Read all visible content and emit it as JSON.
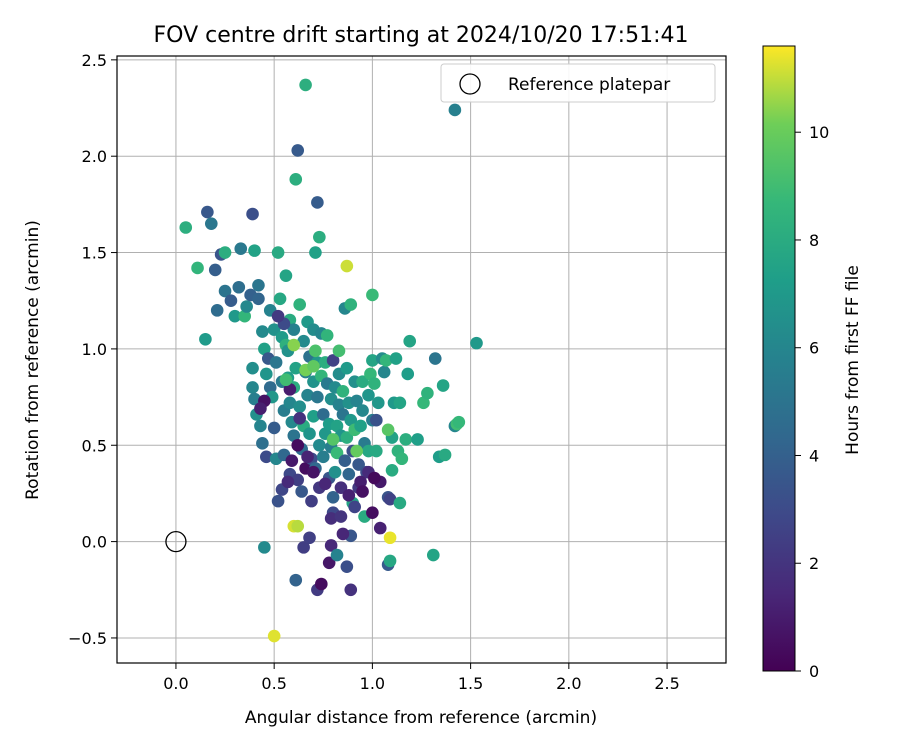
{
  "chart_data": {
    "type": "scatter",
    "title": "FOV centre drift starting at 2024/10/20 17:51:41",
    "xlabel": "Angular distance from reference (arcmin)",
    "ylabel": "Rotation from reference (arcmin)",
    "xlim": [
      -0.3,
      2.8
    ],
    "ylim": [
      -0.63,
      2.52
    ],
    "xticks": [
      0.0,
      0.5,
      1.0,
      1.5,
      2.0,
      2.5
    ],
    "xtick_labels": [
      "0.0",
      "0.5",
      "1.0",
      "1.5",
      "2.0",
      "2.5"
    ],
    "yticks": [
      -0.5,
      0.0,
      0.5,
      1.0,
      1.5,
      2.0,
      2.5
    ],
    "ytick_labels": [
      "−0.5",
      "0.0",
      "0.5",
      "1.0",
      "1.5",
      "2.0",
      "2.5"
    ],
    "grid": true,
    "legend": {
      "position": "top-right",
      "entries": [
        "Reference platepar"
      ]
    },
    "reference_point": {
      "x": 0.0,
      "y": 0.0,
      "label": "Reference platepar"
    },
    "colorbar": {
      "label": "Hours from first FF file",
      "colormap": "viridis",
      "range": [
        0,
        11.6
      ],
      "ticks": [
        0,
        2,
        4,
        6,
        8,
        10
      ],
      "tick_labels": [
        "0",
        "2",
        "4",
        "6",
        "8",
        "10"
      ]
    },
    "point_columns": [
      "x_arcmin",
      "y_arcmin",
      "hours"
    ],
    "points": [
      [
        0.05,
        1.63,
        8.2
      ],
      [
        0.11,
        1.42,
        8.5
      ],
      [
        0.15,
        1.05,
        7.1
      ],
      [
        0.16,
        1.71,
        3.6
      ],
      [
        0.18,
        1.65,
        5.2
      ],
      [
        0.2,
        1.41,
        3.9
      ],
      [
        0.21,
        1.2,
        4.6
      ],
      [
        0.23,
        1.49,
        3.4
      ],
      [
        0.25,
        1.3,
        5.0
      ],
      [
        0.25,
        1.5,
        8.1
      ],
      [
        0.28,
        1.25,
        3.8
      ],
      [
        0.3,
        1.17,
        7.0
      ],
      [
        0.32,
        1.32,
        4.7
      ],
      [
        0.33,
        1.52,
        5.3
      ],
      [
        0.35,
        1.17,
        8.6
      ],
      [
        0.36,
        1.22,
        6.1
      ],
      [
        0.38,
        1.28,
        4.0
      ],
      [
        0.39,
        1.7,
        3.2
      ],
      [
        0.4,
        1.51,
        7.5
      ],
      [
        0.39,
        0.9,
        6.4
      ],
      [
        0.39,
        0.8,
        6.0
      ],
      [
        0.4,
        0.74,
        5.6
      ],
      [
        0.41,
        0.66,
        6.5
      ],
      [
        0.42,
        1.33,
        5.1
      ],
      [
        0.42,
        1.26,
        4.2
      ],
      [
        0.43,
        0.6,
        5.9
      ],
      [
        0.44,
        0.51,
        4.8
      ],
      [
        0.44,
        1.09,
        6.2
      ],
      [
        0.45,
        1.0,
        7.4
      ],
      [
        0.46,
        0.87,
        6.8
      ],
      [
        0.46,
        0.44,
        3.0
      ],
      [
        0.47,
        0.95,
        3.6
      ],
      [
        0.48,
        1.2,
        5.8
      ],
      [
        0.48,
        0.8,
        4.5
      ],
      [
        0.49,
        0.75,
        6.9
      ],
      [
        0.5,
        0.59,
        3.8
      ],
      [
        0.5,
        1.1,
        6.6
      ],
      [
        0.51,
        0.93,
        5.2
      ],
      [
        0.51,
        0.43,
        6.0
      ],
      [
        0.52,
        0.21,
        3.3
      ],
      [
        0.52,
        1.5,
        7.9
      ],
      [
        0.53,
        1.26,
        7.8
      ],
      [
        0.54,
        1.06,
        7.1
      ],
      [
        0.54,
        0.83,
        5.4
      ],
      [
        0.55,
        0.68,
        5.5
      ],
      [
        0.55,
        0.45,
        4.4
      ],
      [
        0.56,
        1.38,
        7.6
      ],
      [
        0.56,
        1.02,
        8.3
      ],
      [
        0.57,
        0.99,
        6.6
      ],
      [
        0.57,
        0.85,
        7.2
      ],
      [
        0.58,
        1.15,
        8.0
      ],
      [
        0.58,
        0.72,
        6.0
      ],
      [
        0.58,
        0.35,
        2.9
      ],
      [
        0.59,
        0.42,
        0.9
      ],
      [
        0.59,
        0.62,
        6.1
      ],
      [
        0.6,
        1.1,
        5.7
      ],
      [
        0.6,
        0.8,
        8.1
      ],
      [
        0.6,
        0.55,
        5.0
      ],
      [
        0.61,
        1.88,
        8.2
      ],
      [
        0.62,
        2.03,
        3.7
      ],
      [
        0.61,
        0.9,
        7.5
      ],
      [
        0.62,
        0.32,
        2.5
      ],
      [
        0.63,
        0.7,
        6.4
      ],
      [
        0.63,
        1.23,
        8.4
      ],
      [
        0.64,
        0.48,
        4.6
      ],
      [
        0.64,
        0.26,
        3.6
      ],
      [
        0.65,
        1.04,
        6.2
      ],
      [
        0.65,
        0.6,
        8.0
      ],
      [
        0.66,
        0.88,
        5.7
      ],
      [
        0.66,
        0.38,
        0.5
      ],
      [
        0.66,
        2.37,
        8.2
      ],
      [
        0.67,
        1.14,
        7.0
      ],
      [
        0.67,
        0.76,
        5.9
      ],
      [
        0.68,
        0.96,
        4.9
      ],
      [
        0.68,
        0.56,
        6.8
      ],
      [
        0.69,
        0.43,
        3.1
      ],
      [
        0.69,
        0.21,
        2.4
      ],
      [
        0.7,
        0.83,
        6.7
      ],
      [
        0.7,
        0.65,
        7.3
      ],
      [
        0.7,
        1.1,
        6.3
      ],
      [
        0.71,
        1.5,
        7.4
      ],
      [
        0.71,
        0.38,
        4.4
      ],
      [
        0.72,
        0.93,
        6.9
      ],
      [
        0.72,
        0.75,
        5.2
      ],
      [
        0.72,
        1.76,
        3.8
      ],
      [
        0.73,
        1.58,
        8.1
      ],
      [
        0.73,
        0.5,
        6.2
      ],
      [
        0.73,
        0.28,
        2.1
      ],
      [
        0.74,
        1.08,
        6.0
      ],
      [
        0.74,
        0.86,
        8.6
      ],
      [
        0.75,
        0.66,
        4.6
      ],
      [
        0.75,
        0.44,
        5.5
      ],
      [
        0.76,
        0.56,
        6.9
      ],
      [
        0.76,
        0.93,
        8.1
      ],
      [
        0.77,
        1.07,
        8.5
      ],
      [
        0.77,
        0.82,
        5.3
      ],
      [
        0.78,
        0.33,
        3.5
      ],
      [
        0.78,
        0.61,
        7.2
      ],
      [
        0.79,
        0.74,
        6.4
      ],
      [
        0.79,
        0.49,
        5.6
      ],
      [
        0.8,
        0.94,
        2.6
      ],
      [
        0.8,
        0.15,
        2.9
      ],
      [
        0.8,
        0.23,
        4.1
      ],
      [
        0.81,
        0.8,
        6.2
      ],
      [
        0.81,
        0.36,
        6.5
      ],
      [
        0.82,
        0.6,
        7.5
      ],
      [
        0.82,
        0.46,
        8.8
      ],
      [
        0.83,
        0.87,
        6.3
      ],
      [
        0.83,
        0.71,
        5.8
      ],
      [
        0.84,
        0.28,
        1.8
      ],
      [
        0.84,
        0.55,
        6.8
      ],
      [
        0.85,
        0.78,
        8.4
      ],
      [
        0.85,
        0.66,
        5.1
      ],
      [
        0.86,
        0.42,
        3.9
      ],
      [
        0.86,
        1.21,
        6.0
      ],
      [
        0.87,
        0.9,
        7.1
      ],
      [
        0.87,
        0.54,
        8.2
      ],
      [
        0.88,
        0.72,
        6.6
      ],
      [
        0.88,
        0.35,
        4.3
      ],
      [
        0.89,
        1.23,
        8.4
      ],
      [
        0.89,
        0.63,
        7.0
      ],
      [
        0.9,
        0.2,
        7.6
      ],
      [
        0.9,
        0.47,
        3.2
      ],
      [
        0.91,
        0.83,
        6.5
      ],
      [
        0.91,
        0.58,
        8.9
      ],
      [
        0.92,
        0.73,
        5.9
      ],
      [
        0.93,
        0.28,
        2.2
      ],
      [
        0.93,
        0.4,
        3.6
      ],
      [
        0.94,
        0.6,
        7.4
      ],
      [
        0.95,
        0.68,
        6.1
      ],
      [
        0.95,
        0.83,
        8.0
      ],
      [
        0.96,
        0.51,
        5.4
      ],
      [
        0.96,
        0.13,
        8.0
      ],
      [
        0.97,
        0.36,
        3.1
      ],
      [
        0.98,
        0.76,
        6.8
      ],
      [
        0.98,
        0.47,
        7.8
      ],
      [
        0.99,
        0.87,
        8.7
      ],
      [
        1.0,
        0.94,
        7.6
      ],
      [
        1.0,
        0.63,
        5.6
      ],
      [
        1.0,
        1.28,
        8.8
      ],
      [
        1.0,
        0.15,
        0.5
      ],
      [
        1.01,
        0.82,
        8.4
      ],
      [
        1.02,
        0.63,
        3.3
      ],
      [
        1.02,
        0.47,
        7.9
      ],
      [
        1.03,
        0.72,
        6.9
      ],
      [
        1.04,
        0.31,
        0.9
      ],
      [
        1.04,
        0.07,
        1.2
      ],
      [
        1.05,
        0.95,
        6.3
      ],
      [
        1.06,
        0.88,
        6.0
      ],
      [
        1.07,
        0.94,
        8.6
      ],
      [
        1.08,
        0.23,
        3.4
      ],
      [
        1.08,
        -0.12,
        3.7
      ],
      [
        1.09,
        -0.1,
        7.8
      ],
      [
        1.09,
        0.22,
        2.6
      ],
      [
        1.1,
        0.54,
        7.5
      ],
      [
        1.1,
        0.37,
        8.0
      ],
      [
        1.11,
        0.72,
        7.0
      ],
      [
        1.12,
        0.95,
        7.4
      ],
      [
        1.13,
        0.47,
        8.4
      ],
      [
        1.14,
        0.72,
        7.6
      ],
      [
        1.14,
        0.2,
        7.9
      ],
      [
        1.15,
        0.43,
        8.6
      ],
      [
        1.17,
        0.53,
        8.2
      ],
      [
        1.18,
        0.87,
        7.2
      ],
      [
        1.19,
        1.04,
        7.6
      ],
      [
        1.23,
        0.53,
        7.3
      ],
      [
        1.26,
        0.72,
        8.7
      ],
      [
        1.28,
        0.77,
        8.4
      ],
      [
        1.31,
        -0.07,
        7.6
      ],
      [
        1.32,
        0.95,
        5.1
      ],
      [
        1.34,
        0.44,
        7.2
      ],
      [
        1.36,
        0.81,
        7.6
      ],
      [
        1.37,
        0.45,
        7.9
      ],
      [
        1.42,
        0.6,
        6.0
      ],
      [
        1.43,
        0.61,
        9.0
      ],
      [
        1.44,
        0.62,
        8.7
      ],
      [
        1.42,
        2.24,
        5.7
      ],
      [
        1.53,
        1.03,
        7.0
      ],
      [
        0.45,
        -0.03,
        6.2
      ],
      [
        0.5,
        -0.49,
        11.3
      ],
      [
        0.6,
        0.08,
        11.2
      ],
      [
        0.62,
        0.08,
        10.9
      ],
      [
        0.65,
        -0.03,
        2.4
      ],
      [
        0.61,
        -0.2,
        4.1
      ],
      [
        0.68,
        0.02,
        2.5
      ],
      [
        0.72,
        -0.25,
        2.3
      ],
      [
        0.74,
        -0.22,
        0.4
      ],
      [
        0.78,
        -0.11,
        0.8
      ],
      [
        0.79,
        -0.02,
        1.5
      ],
      [
        0.82,
        -0.07,
        5.8
      ],
      [
        0.87,
        -0.13,
        3.2
      ],
      [
        0.89,
        -0.25,
        1.9
      ],
      [
        0.89,
        0.03,
        3.5
      ],
      [
        0.85,
        0.04,
        1.4
      ],
      [
        1.09,
        0.02,
        11.4
      ],
      [
        0.87,
        1.43,
        11.1
      ],
      [
        0.66,
        0.89,
        10.2
      ],
      [
        0.94,
        0.31,
        1.1
      ],
      [
        0.98,
        0.36,
        1.6
      ],
      [
        1.01,
        0.33,
        0.3
      ],
      [
        0.58,
        0.79,
        1.0
      ],
      [
        0.62,
        0.5,
        0.4
      ],
      [
        0.67,
        0.44,
        1.3
      ],
      [
        0.7,
        0.36,
        0.7
      ],
      [
        0.76,
        0.3,
        1.4
      ],
      [
        0.79,
        0.12,
        1.7
      ],
      [
        0.84,
        0.13,
        2.0
      ],
      [
        0.88,
        0.24,
        1.2
      ],
      [
        0.91,
        0.18,
        2.7
      ],
      [
        0.95,
        0.26,
        0.6
      ],
      [
        0.54,
        0.27,
        2.8
      ],
      [
        0.57,
        0.31,
        1.6
      ],
      [
        0.63,
        0.64,
        1.9
      ],
      [
        0.45,
        0.73,
        0.6
      ],
      [
        0.43,
        0.69,
        1.1
      ],
      [
        0.6,
        1.02,
        10.4
      ],
      [
        0.7,
        0.91,
        9.8
      ],
      [
        0.8,
        0.53,
        9.5
      ],
      [
        0.92,
        0.47,
        9.9
      ],
      [
        1.08,
        0.58,
        9.6
      ],
      [
        0.71,
        0.99,
        9.3
      ],
      [
        0.56,
        0.84,
        9.0
      ],
      [
        0.83,
        0.99,
        9.1
      ],
      [
        0.55,
        1.13,
        3.0
      ],
      [
        0.52,
        1.17,
        2.2
      ]
    ]
  }
}
